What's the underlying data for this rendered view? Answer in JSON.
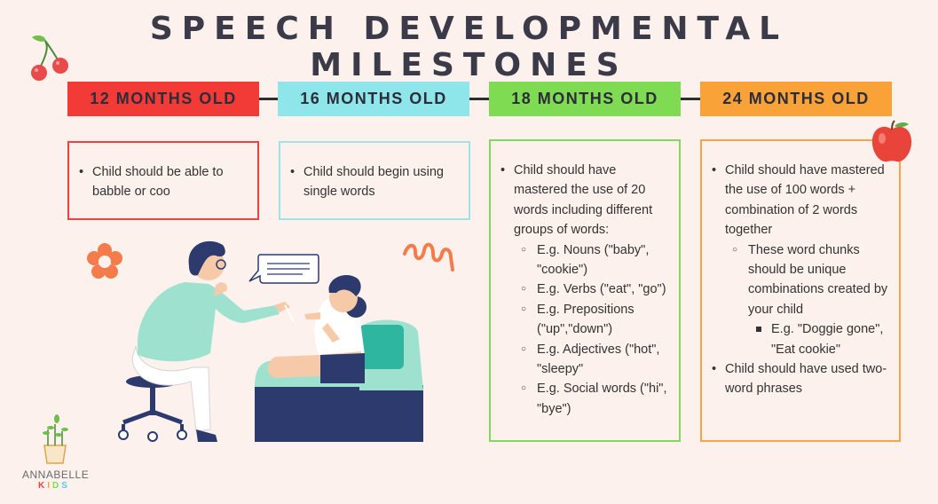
{
  "title": "SPEECH DEVELOPMENTAL MILESTONES",
  "milestones": [
    {
      "heading": "12 MONTHS OLD",
      "color": "#f23b36",
      "items": [
        "Child should be able to babble or coo"
      ]
    },
    {
      "heading": "16 MONTHS OLD",
      "color": "#8ee6ea",
      "items": [
        "Child should begin using single words"
      ]
    },
    {
      "heading": "18 MONTHS OLD",
      "color": "#7edb52",
      "intro": "Child should have mastered the use of 20 words including different groups of words:",
      "sub": [
        "E.g. Nouns (\"baby\", \"cookie\")",
        "E.g. Verbs (\"eat\", \"go\")",
        "E.g. Prepositions (\"up\",\"down\")",
        "E.g. Adjectives (\"hot\", \"sleepy\"",
        "E.g. Social words (\"hi\", \"bye\")"
      ]
    },
    {
      "heading": "24 MONTHS OLD",
      "color": "#f8a238",
      "intro": "Child should have mastered the use of 100 words + combination of 2 words together",
      "sub": "These word chunks should be unique combinations created by your child",
      "subsub": "E.g. \"Doggie gone\", \"Eat cookie\"",
      "last": "Child should have used two-word phrases"
    }
  ],
  "logo": {
    "name": "ANNABELLE",
    "kids": [
      "K",
      "I",
      "D",
      "S"
    ]
  },
  "icons": [
    "cherries-icon",
    "apple-icon",
    "flower-icon",
    "squiggle-icon",
    "speech-bubble-icon",
    "plant-icon"
  ]
}
